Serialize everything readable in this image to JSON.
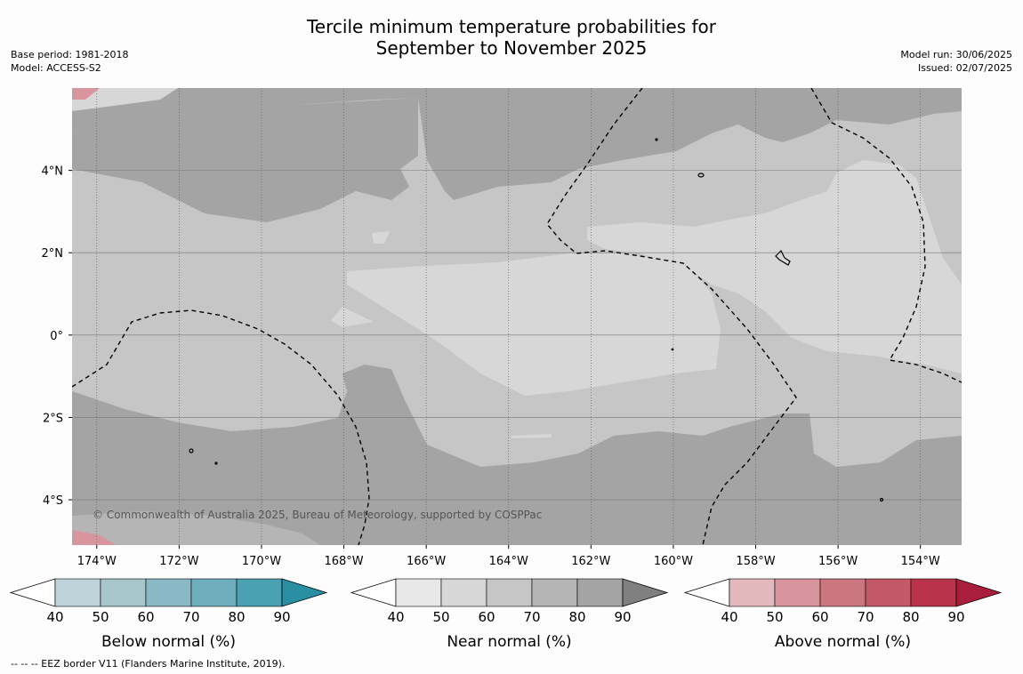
{
  "header": {
    "title_line1": "Tercile minimum temperature probabilities for",
    "title_line2": "September to November 2025",
    "base_period": "Base period: 1981-2018",
    "model": "Model: ACCESS-S2",
    "model_run": "Model run: 30/06/2025",
    "issued": "Issued: 02/07/2025"
  },
  "copyright": "© Commonwealth of Australia 2025, Bureau of Meteorology, supported by COSPPac",
  "footnote": "--  --  -- EEZ border V11 (Flanders Marine Institute, 2019).",
  "chart_data": {
    "type": "heatmap",
    "title": "Tercile minimum temperature probabilities for September to November 2025",
    "x_ticks": [
      "174°W",
      "172°W",
      "170°W",
      "168°W",
      "166°W",
      "164°W",
      "162°W",
      "160°W",
      "158°W",
      "156°W",
      "154°W"
    ],
    "x_tick_values": [
      -174,
      -172,
      -170,
      -168,
      -166,
      -164,
      -162,
      -160,
      -158,
      -156,
      -154
    ],
    "y_ticks": [
      "4°N",
      "2°N",
      "0°",
      "2°S",
      "4°S"
    ],
    "y_tick_values": [
      4,
      2,
      0,
      -2,
      -4
    ],
    "xlim": [
      -174.6,
      -153
    ],
    "ylim": [
      -5.1,
      6
    ],
    "grid": true,
    "dominant_category": "Near normal",
    "colorbars": [
      {
        "label": "Below normal (%)",
        "ticks": [
          "40",
          "50",
          "60",
          "70",
          "80",
          "90"
        ],
        "colors": [
          "#ffffff",
          "#bcd4da",
          "#a6c6cc",
          "#8ab8c4",
          "#6eaebc",
          "#4aa1b2",
          "#2b8fa4"
        ]
      },
      {
        "label": "Near normal (%)",
        "ticks": [
          "40",
          "50",
          "60",
          "70",
          "80",
          "90"
        ],
        "colors": [
          "#ffffff",
          "#e8e8e8",
          "#d7d7d7",
          "#c6c6c6",
          "#b5b5b5",
          "#a4a4a4",
          "#808080"
        ]
      },
      {
        "label": "Above normal (%)",
        "ticks": [
          "40",
          "50",
          "60",
          "70",
          "80",
          "90"
        ],
        "colors": [
          "#ffffff",
          "#e2b8bd",
          "#d8959d",
          "#cc7680",
          "#c25868",
          "#b93449",
          "#a81e3c"
        ]
      }
    ]
  }
}
